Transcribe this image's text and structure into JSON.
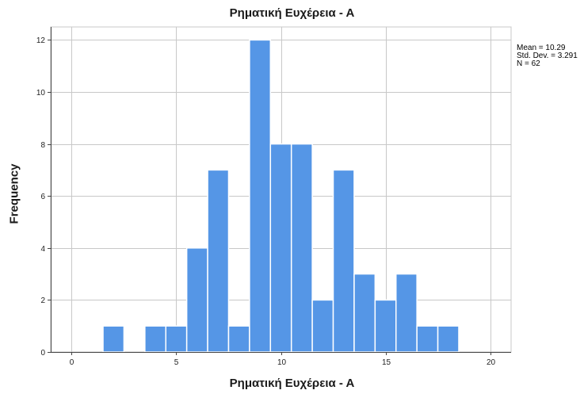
{
  "chart_data": {
    "type": "bar",
    "title": "Ρηματική Ευχέρεια - Α",
    "xlabel": "Ρηματική Ευχέρεια - Α",
    "ylabel": "Frequency",
    "xlim": [
      -1,
      21
    ],
    "ylim": [
      0,
      12.5
    ],
    "x_ticks": [
      0,
      5,
      10,
      15,
      20
    ],
    "y_ticks": [
      0,
      2,
      4,
      6,
      8,
      10,
      12
    ],
    "bins": [
      {
        "start": 1.5,
        "end": 2.5,
        "value": 1
      },
      {
        "start": 2.5,
        "end": 3.5,
        "value": 0
      },
      {
        "start": 3.5,
        "end": 4.5,
        "value": 1
      },
      {
        "start": 4.5,
        "end": 5.5,
        "value": 1
      },
      {
        "start": 5.5,
        "end": 6.5,
        "value": 4
      },
      {
        "start": 6.5,
        "end": 7.5,
        "value": 7
      },
      {
        "start": 7.5,
        "end": 8.5,
        "value": 1
      },
      {
        "start": 8.5,
        "end": 9.5,
        "value": 12
      },
      {
        "start": 9.5,
        "end": 10.5,
        "value": 8
      },
      {
        "start": 10.5,
        "end": 11.5,
        "value": 8
      },
      {
        "start": 11.5,
        "end": 12.5,
        "value": 2
      },
      {
        "start": 12.5,
        "end": 13.5,
        "value": 7
      },
      {
        "start": 13.5,
        "end": 14.5,
        "value": 3
      },
      {
        "start": 14.5,
        "end": 15.5,
        "value": 2
      },
      {
        "start": 15.5,
        "end": 16.5,
        "value": 3
      },
      {
        "start": 16.5,
        "end": 17.5,
        "value": 1
      },
      {
        "start": 17.5,
        "end": 18.5,
        "value": 1
      }
    ],
    "stats": {
      "mean": "Mean = 10.29",
      "std": "Std. Dev. = 3.291",
      "n": "N = 62"
    },
    "grid": true,
    "colors": {
      "bar": "#5596e6",
      "bar_edge": "#ffffff",
      "grid": "#c8c8c8",
      "axis": "#444444"
    }
  }
}
